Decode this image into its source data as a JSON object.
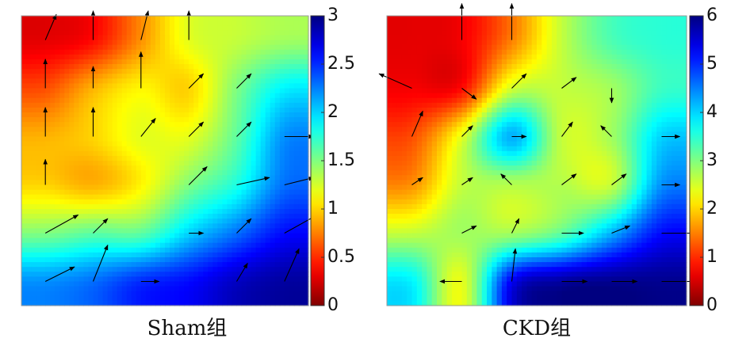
{
  "chart_data": [
    {
      "type": "heatmap",
      "subtype": "vector-field",
      "caption": "Sham组",
      "colorscale": "jet-reversed",
      "colorbar": {
        "range": [
          0,
          3
        ],
        "ticks": [
          0,
          0.5,
          1,
          1.5,
          2,
          2.5,
          3
        ],
        "tick_labels": [
          "0",
          "0.5",
          "1",
          "1.5",
          "2",
          "2.5",
          "3"
        ]
      },
      "grid": {
        "x": [
          0.5,
          1.5,
          2.5,
          3.5,
          4.5,
          5.5
        ],
        "y": [
          0.5,
          1.5,
          2.5,
          3.5,
          4.5,
          5.5
        ]
      },
      "field": [
        [
          0.3,
          0.4,
          0.8,
          1.2,
          1.3,
          1.4
        ],
        [
          0.6,
          0.9,
          1.1,
          1.0,
          1.5,
          1.9
        ],
        [
          0.9,
          1.0,
          1.2,
          1.2,
          1.6,
          2.2
        ],
        [
          1.0,
          0.9,
          1.1,
          1.5,
          1.8,
          2.3
        ],
        [
          1.5,
          1.6,
          1.6,
          2.0,
          2.3,
          2.6
        ],
        [
          2.2,
          2.3,
          2.5,
          2.6,
          2.8,
          2.9
        ]
      ],
      "vectors": [
        {
          "x": 0.5,
          "y": 0.5,
          "dx": 0.8,
          "dy": 0.4
        },
        {
          "x": 1.5,
          "y": 0.5,
          "dx": 0.4,
          "dy": 1.0
        },
        {
          "x": 2.5,
          "y": 0.5,
          "dx": 0.5,
          "dy": 0.0
        },
        {
          "x": 4.5,
          "y": 0.5,
          "dx": 0.3,
          "dy": 0.5
        },
        {
          "x": 5.5,
          "y": 0.5,
          "dx": 0.4,
          "dy": 0.9
        },
        {
          "x": 0.5,
          "y": 1.5,
          "dx": 0.9,
          "dy": 0.5
        },
        {
          "x": 1.5,
          "y": 1.5,
          "dx": 0.4,
          "dy": 0.4
        },
        {
          "x": 3.5,
          "y": 1.5,
          "dx": 0.4,
          "dy": 0.0
        },
        {
          "x": 4.5,
          "y": 1.5,
          "dx": 0.4,
          "dy": 0.4
        },
        {
          "x": 5.5,
          "y": 1.5,
          "dx": 0.9,
          "dy": 0.5
        },
        {
          "x": 0.5,
          "y": 2.5,
          "dx": 0.0,
          "dy": 0.7
        },
        {
          "x": 3.5,
          "y": 2.5,
          "dx": 0.5,
          "dy": 0.5
        },
        {
          "x": 4.5,
          "y": 2.5,
          "dx": 0.9,
          "dy": 0.2
        },
        {
          "x": 5.5,
          "y": 2.5,
          "dx": 0.8,
          "dy": 0.2
        },
        {
          "x": 0.5,
          "y": 3.5,
          "dx": 0.0,
          "dy": 0.8
        },
        {
          "x": 1.5,
          "y": 3.5,
          "dx": 0.0,
          "dy": 0.8
        },
        {
          "x": 2.5,
          "y": 3.5,
          "dx": 0.4,
          "dy": 0.5
        },
        {
          "x": 3.5,
          "y": 3.5,
          "dx": 0.4,
          "dy": 0.4
        },
        {
          "x": 4.5,
          "y": 3.5,
          "dx": 0.4,
          "dy": 0.4
        },
        {
          "x": 5.5,
          "y": 3.5,
          "dx": 0.8,
          "dy": 0.0
        },
        {
          "x": 0.5,
          "y": 4.5,
          "dx": 0.0,
          "dy": 0.8
        },
        {
          "x": 1.5,
          "y": 4.5,
          "dx": 0.0,
          "dy": 0.6
        },
        {
          "x": 2.5,
          "y": 4.5,
          "dx": 0.0,
          "dy": 1.0
        },
        {
          "x": 3.5,
          "y": 4.5,
          "dx": 0.4,
          "dy": 0.4
        },
        {
          "x": 4.5,
          "y": 4.5,
          "dx": 0.4,
          "dy": 0.4
        },
        {
          "x": 0.5,
          "y": 5.5,
          "dx": 0.3,
          "dy": 0.7
        },
        {
          "x": 1.5,
          "y": 5.5,
          "dx": 0.0,
          "dy": 0.8
        },
        {
          "x": 2.5,
          "y": 5.5,
          "dx": 0.2,
          "dy": 0.8
        },
        {
          "x": 3.5,
          "y": 5.5,
          "dx": 0.0,
          "dy": 0.8
        }
      ]
    },
    {
      "type": "heatmap",
      "subtype": "vector-field",
      "caption": "CKD组",
      "colorscale": "jet-reversed",
      "colorbar": {
        "range": [
          0,
          6
        ],
        "ticks": [
          0,
          1,
          2,
          3,
          4,
          5,
          6
        ],
        "tick_labels": [
          "0",
          "1",
          "2",
          "3",
          "4",
          "5",
          "6"
        ]
      },
      "grid": {
        "x": [
          0.5,
          1.5,
          2.5,
          3.5,
          4.5,
          5.5
        ],
        "y": [
          0.5,
          1.5,
          2.5,
          3.5,
          4.5,
          5.5
        ]
      },
      "field": [
        [
          0.6,
          0.7,
          1.5,
          2.6,
          3.3,
          3.5
        ],
        [
          0.7,
          0.8,
          2.5,
          2.6,
          2.8,
          3.4
        ],
        [
          1.2,
          2.4,
          4.2,
          2.6,
          2.8,
          4.0
        ],
        [
          1.6,
          2.6,
          2.7,
          2.7,
          2.6,
          4.4
        ],
        [
          2.6,
          2.8,
          2.8,
          3.2,
          4.2,
          5.2
        ],
        [
          3.8,
          2.4,
          5.3,
          5.8,
          5.9,
          5.9
        ]
      ],
      "vectors": [
        {
          "x": 1.5,
          "y": 0.5,
          "dx": -0.6,
          "dy": 0.0
        },
        {
          "x": 2.5,
          "y": 0.5,
          "dx": 0.1,
          "dy": 0.9
        },
        {
          "x": 3.5,
          "y": 0.5,
          "dx": 0.7,
          "dy": 0.0
        },
        {
          "x": 4.5,
          "y": 0.5,
          "dx": 0.7,
          "dy": 0.0
        },
        {
          "x": 5.5,
          "y": 0.5,
          "dx": 0.9,
          "dy": 0.0
        },
        {
          "x": 1.5,
          "y": 1.5,
          "dx": 0.4,
          "dy": 0.2
        },
        {
          "x": 2.5,
          "y": 1.5,
          "dx": 0.2,
          "dy": 0.4
        },
        {
          "x": 3.5,
          "y": 1.5,
          "dx": 0.6,
          "dy": 0.0
        },
        {
          "x": 4.5,
          "y": 1.5,
          "dx": 0.5,
          "dy": 0.2
        },
        {
          "x": 5.5,
          "y": 1.5,
          "dx": 0.9,
          "dy": 0.0
        },
        {
          "x": 0.5,
          "y": 2.5,
          "dx": 0.3,
          "dy": 0.2
        },
        {
          "x": 1.5,
          "y": 2.5,
          "dx": 0.3,
          "dy": 0.2
        },
        {
          "x": 2.5,
          "y": 2.5,
          "dx": -0.3,
          "dy": 0.3
        },
        {
          "x": 3.5,
          "y": 2.5,
          "dx": 0.4,
          "dy": 0.3
        },
        {
          "x": 4.5,
          "y": 2.5,
          "dx": 0.4,
          "dy": 0.3
        },
        {
          "x": 5.5,
          "y": 2.5,
          "dx": 0.5,
          "dy": 0.0
        },
        {
          "x": 0.5,
          "y": 3.5,
          "dx": 0.3,
          "dy": 0.7
        },
        {
          "x": 1.5,
          "y": 3.5,
          "dx": 0.3,
          "dy": 0.3
        },
        {
          "x": 2.5,
          "y": 3.5,
          "dx": 0.4,
          "dy": 0.0
        },
        {
          "x": 3.5,
          "y": 3.5,
          "dx": 0.3,
          "dy": 0.4
        },
        {
          "x": 4.5,
          "y": 3.5,
          "dx": -0.3,
          "dy": 0.3
        },
        {
          "x": 5.5,
          "y": 3.5,
          "dx": 0.5,
          "dy": 0.0
        },
        {
          "x": 0.5,
          "y": 4.5,
          "dx": -0.9,
          "dy": 0.4
        },
        {
          "x": 1.5,
          "y": 4.5,
          "dx": 0.4,
          "dy": -0.3
        },
        {
          "x": 2.5,
          "y": 4.5,
          "dx": 0.4,
          "dy": 0.4
        },
        {
          "x": 3.5,
          "y": 4.5,
          "dx": 0.4,
          "dy": 0.3
        },
        {
          "x": 4.5,
          "y": 4.5,
          "dx": 0.0,
          "dy": -0.4
        },
        {
          "x": 1.5,
          "y": 5.5,
          "dx": 0.0,
          "dy": 1.0
        },
        {
          "x": 2.5,
          "y": 5.5,
          "dx": 0.0,
          "dy": 1.0
        }
      ]
    }
  ]
}
